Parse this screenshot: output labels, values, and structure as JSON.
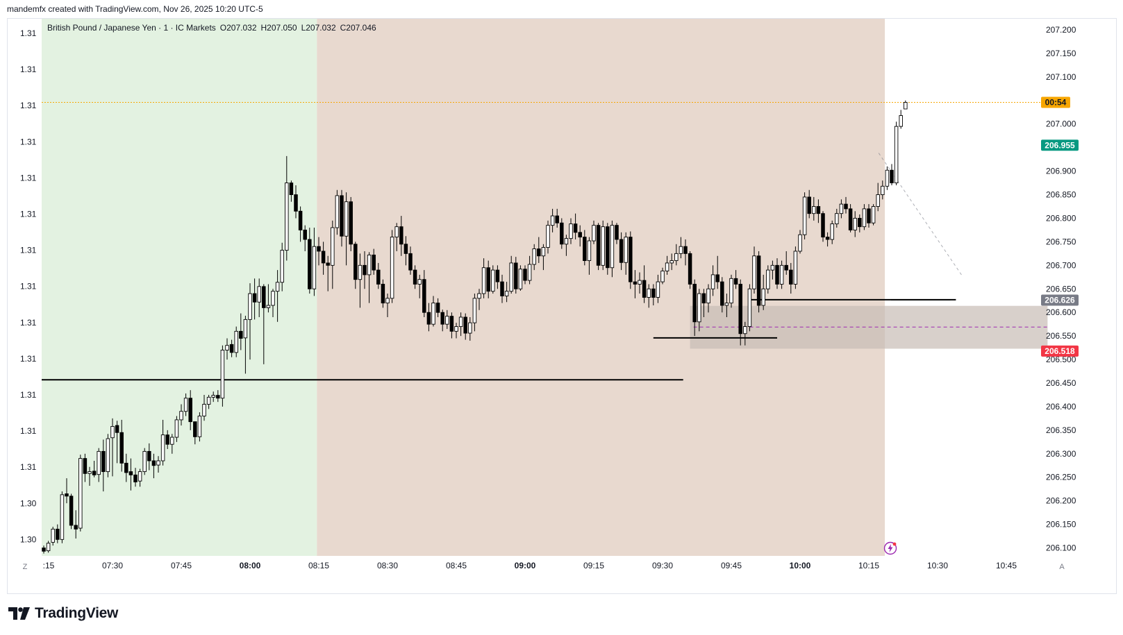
{
  "header": {
    "credit": "mandemfx created with TradingView.com, Nov 26, 2025 10:20 UTC-5"
  },
  "legend": {
    "symbol": "British Pound / Japanese Yen · 1 · IC Markets",
    "open": "O207.032",
    "high": "H207.050",
    "low": "L207.032",
    "close": "C207.046"
  },
  "brand": {
    "name": "TradingView",
    "icon": "tradingview-logo-icon"
  },
  "footer": {
    "z_label": "Z",
    "auto_label": "A"
  },
  "colors": {
    "bull_body": "#ffffff",
    "bear_body": "#000000",
    "bg_session_green": "#e3f2e1",
    "bg_session_brown": "#e8d9cf",
    "target_zone": "#8fc3a6",
    "stop_zone": "#eba9a7",
    "fvg_box": "#c7bcb5",
    "current_price_line": "#f7a600",
    "countdown_badge": "#f7a600",
    "target_badge": "#089981",
    "entry_badge": "#787b86",
    "stop_badge": "#f23645"
  },
  "chart_data": {
    "type": "candlestick",
    "symbol": "GBPJPY",
    "timeframe": "1",
    "x_tick_labels": [
      ":15",
      "07:30",
      "07:45",
      "08:00",
      "08:15",
      "08:30",
      "08:45",
      "09:00",
      "09:15",
      "09:30",
      "09:45",
      "10:00",
      "10:15",
      "10:30",
      "10:45"
    ],
    "x_tick_bold": [
      false,
      false,
      false,
      true,
      false,
      false,
      false,
      true,
      false,
      false,
      false,
      true,
      false,
      false,
      false
    ],
    "right_axis_labels": [
      "207.200",
      "207.150",
      "207.100",
      "207.000",
      "206.900",
      "206.850",
      "206.800",
      "206.750",
      "206.700",
      "206.650",
      "206.600",
      "206.550",
      "206.500",
      "206.450",
      "206.400",
      "206.350",
      "206.300",
      "206.250",
      "206.200",
      "206.150",
      "206.100"
    ],
    "left_axis_labels": [
      "1.31",
      "1.31",
      "1.31",
      "1.31",
      "1.31",
      "1.31",
      "1.31",
      "1.31",
      "1.31",
      "1.31",
      "1.31",
      "1.31",
      "1.31",
      "1.30",
      "1.30"
    ],
    "ylim": [
      206.085,
      207.225
    ],
    "price_badges": [
      {
        "text": "00:54",
        "price": 207.046,
        "kind": "countdown"
      },
      {
        "text": "206.955",
        "price": 206.955,
        "kind": "target"
      },
      {
        "text": "206.626",
        "price": 206.626,
        "kind": "entry"
      },
      {
        "text": "206.518",
        "price": 206.518,
        "kind": "stop"
      }
    ],
    "background_sessions": [
      {
        "start": 0,
        "end": 59.6,
        "color": "green"
      },
      {
        "start": 59.6,
        "end": 183.5,
        "color": "brown"
      }
    ],
    "horizontal_levels": [
      {
        "price": 206.457,
        "start": 0,
        "end": 139.5
      },
      {
        "price": 206.546,
        "start": 133,
        "end": 160
      },
      {
        "price": 206.627,
        "start": 154,
        "end": 199
      }
    ],
    "fvg_box": {
      "top": 206.614,
      "bottom": 206.523,
      "start": 141,
      "end": 219,
      "mid": 206.569
    },
    "position": {
      "entry": 206.626,
      "target": 206.955,
      "stop": 206.518,
      "start": 199,
      "end": 244.5
    },
    "candles": [
      [
        206.1,
        206.105,
        206.088,
        206.093
      ],
      [
        206.094,
        206.115,
        206.09,
        206.11
      ],
      [
        206.112,
        206.145,
        206.105,
        206.14
      ],
      [
        206.14,
        206.15,
        206.11,
        206.118
      ],
      [
        206.118,
        206.22,
        206.11,
        206.213
      ],
      [
        206.215,
        206.248,
        206.195,
        206.21
      ],
      [
        206.21,
        206.215,
        206.14,
        206.148
      ],
      [
        206.148,
        206.18,
        206.12,
        206.14
      ],
      [
        206.142,
        206.298,
        206.135,
        206.29
      ],
      [
        206.29,
        206.3,
        206.24,
        206.258
      ],
      [
        206.258,
        206.272,
        206.232,
        206.262
      ],
      [
        206.263,
        206.285,
        206.25,
        206.255
      ],
      [
        206.256,
        206.312,
        206.24,
        206.305
      ],
      [
        206.305,
        206.33,
        206.22,
        206.262
      ],
      [
        206.262,
        206.342,
        206.25,
        206.332
      ],
      [
        206.334,
        206.375,
        206.252,
        206.358
      ],
      [
        206.36,
        206.37,
        206.28,
        206.345
      ],
      [
        206.345,
        206.372,
        206.262,
        206.28
      ],
      [
        206.28,
        206.3,
        206.24,
        206.26
      ],
      [
        206.262,
        206.29,
        206.222,
        206.255
      ],
      [
        206.255,
        206.27,
        206.23,
        206.24
      ],
      [
        206.242,
        206.268,
        206.23,
        206.262
      ],
      [
        206.262,
        206.312,
        206.255,
        206.305
      ],
      [
        206.305,
        206.322,
        206.265,
        206.285
      ],
      [
        206.285,
        206.3,
        206.248,
        206.275
      ],
      [
        206.276,
        206.295,
        206.26,
        206.285
      ],
      [
        206.285,
        206.372,
        206.275,
        206.34
      ],
      [
        206.34,
        206.35,
        206.31,
        206.32
      ],
      [
        206.32,
        206.342,
        206.3,
        206.335
      ],
      [
        206.335,
        206.38,
        206.325,
        206.372
      ],
      [
        206.372,
        206.405,
        206.36,
        206.39
      ],
      [
        206.39,
        206.428,
        206.38,
        206.418
      ],
      [
        206.418,
        206.435,
        206.35,
        206.368
      ],
      [
        206.368,
        206.368,
        206.32,
        206.336
      ],
      [
        206.336,
        206.388,
        206.326,
        206.38
      ],
      [
        206.38,
        206.425,
        206.37,
        206.405
      ],
      [
        206.405,
        206.425,
        206.395,
        206.42
      ],
      [
        206.42,
        206.432,
        206.41,
        206.424
      ],
      [
        206.424,
        206.435,
        206.41,
        206.418
      ],
      [
        206.418,
        206.53,
        206.4,
        206.52
      ],
      [
        206.52,
        206.545,
        206.5,
        206.53
      ],
      [
        206.532,
        206.542,
        206.505,
        206.515
      ],
      [
        206.515,
        206.57,
        206.505,
        206.56
      ],
      [
        206.56,
        206.598,
        206.52,
        206.545
      ],
      [
        206.546,
        206.593,
        206.47,
        206.585
      ],
      [
        206.585,
        206.662,
        206.5,
        206.64
      ],
      [
        206.64,
        206.672,
        206.585,
        206.622
      ],
      [
        206.622,
        206.672,
        206.59,
        206.655
      ],
      [
        206.655,
        206.66,
        206.49,
        206.61
      ],
      [
        206.61,
        206.66,
        206.6,
        206.615
      ],
      [
        206.615,
        206.65,
        206.59,
        206.645
      ],
      [
        206.645,
        206.69,
        206.58,
        206.664
      ],
      [
        206.664,
        206.748,
        206.645,
        206.732
      ],
      [
        206.732,
        206.932,
        206.71,
        206.875
      ],
      [
        206.875,
        206.88,
        206.835,
        206.85
      ],
      [
        206.85,
        206.87,
        206.8,
        206.815
      ],
      [
        206.815,
        206.825,
        206.75,
        206.775
      ],
      [
        206.775,
        206.785,
        206.73,
        206.755
      ],
      [
        206.755,
        206.78,
        206.64,
        206.65
      ],
      [
        206.65,
        206.78,
        206.635,
        206.74
      ],
      [
        206.74,
        206.76,
        206.7,
        206.73
      ],
      [
        206.73,
        206.75,
        206.68,
        206.705
      ],
      [
        206.705,
        206.72,
        206.645,
        206.7
      ],
      [
        206.7,
        206.795,
        206.65,
        206.78
      ],
      [
        206.78,
        206.86,
        206.765,
        206.848
      ],
      [
        206.848,
        206.86,
        206.74,
        206.762
      ],
      [
        206.762,
        206.855,
        206.7,
        206.835
      ],
      [
        206.835,
        206.845,
        206.73,
        206.745
      ],
      [
        206.745,
        206.75,
        206.65,
        206.67
      ],
      [
        206.67,
        206.725,
        206.61,
        206.7
      ],
      [
        206.7,
        206.73,
        206.65,
        206.68
      ],
      [
        206.68,
        206.728,
        206.62,
        206.722
      ],
      [
        206.722,
        206.735,
        206.68,
        206.69
      ],
      [
        206.69,
        206.705,
        206.65,
        206.66
      ],
      [
        206.66,
        206.67,
        206.61,
        206.62
      ],
      [
        206.62,
        206.64,
        206.59,
        206.63
      ],
      [
        206.63,
        206.775,
        206.62,
        206.76
      ],
      [
        206.76,
        206.79,
        206.73,
        206.782
      ],
      [
        206.782,
        206.805,
        206.72,
        206.745
      ],
      [
        206.745,
        206.762,
        206.7,
        206.725
      ],
      [
        206.725,
        206.74,
        206.68,
        206.69
      ],
      [
        206.69,
        206.7,
        206.65,
        206.66
      ],
      [
        206.66,
        206.68,
        206.63,
        206.67
      ],
      [
        206.67,
        206.69,
        206.59,
        206.6
      ],
      [
        206.6,
        206.62,
        206.56,
        206.575
      ],
      [
        206.575,
        206.635,
        206.57,
        206.62
      ],
      [
        206.62,
        206.63,
        206.59,
        206.6
      ],
      [
        206.6,
        206.606,
        206.56,
        206.575
      ],
      [
        206.575,
        206.605,
        206.565,
        206.592
      ],
      [
        206.592,
        206.6,
        206.545,
        206.56
      ],
      [
        206.56,
        206.578,
        206.545,
        206.57
      ],
      [
        206.57,
        206.6,
        206.55,
        206.59
      ],
      [
        206.59,
        206.598,
        206.542,
        206.556
      ],
      [
        206.556,
        206.59,
        206.54,
        206.578
      ],
      [
        206.578,
        206.64,
        206.56,
        206.63
      ],
      [
        206.63,
        206.65,
        206.605,
        206.64
      ],
      [
        206.64,
        206.715,
        206.63,
        206.695
      ],
      [
        206.695,
        206.71,
        206.63,
        206.645
      ],
      [
        206.645,
        206.7,
        206.64,
        206.69
      ],
      [
        206.69,
        206.7,
        206.65,
        206.665
      ],
      [
        206.665,
        206.68,
        206.62,
        206.635
      ],
      [
        206.635,
        206.665,
        206.622,
        206.645
      ],
      [
        206.645,
        206.72,
        206.64,
        206.705
      ],
      [
        206.705,
        206.718,
        206.64,
        206.65
      ],
      [
        206.65,
        206.7,
        206.646,
        206.692
      ],
      [
        206.692,
        206.7,
        206.66,
        206.668
      ],
      [
        206.668,
        206.72,
        206.66,
        206.702
      ],
      [
        206.702,
        206.745,
        206.69,
        206.735
      ],
      [
        206.735,
        206.76,
        206.705,
        206.72
      ],
      [
        206.72,
        206.745,
        206.69,
        206.738
      ],
      [
        206.738,
        206.795,
        206.725,
        206.785
      ],
      [
        206.785,
        206.82,
        206.77,
        206.805
      ],
      [
        206.805,
        206.82,
        206.78,
        206.79
      ],
      [
        206.79,
        206.8,
        206.735,
        206.745
      ],
      [
        206.745,
        206.765,
        206.72,
        206.757
      ],
      [
        206.757,
        206.8,
        206.745,
        206.788
      ],
      [
        206.788,
        206.81,
        206.755,
        206.77
      ],
      [
        206.77,
        206.785,
        206.74,
        206.76
      ],
      [
        206.76,
        206.775,
        206.7,
        206.71
      ],
      [
        206.71,
        206.76,
        206.68,
        206.752
      ],
      [
        206.752,
        206.795,
        206.745,
        206.785
      ],
      [
        206.785,
        206.79,
        206.69,
        206.7
      ],
      [
        206.7,
        206.795,
        206.69,
        206.782
      ],
      [
        206.782,
        206.79,
        206.68,
        206.695
      ],
      [
        206.695,
        206.795,
        206.675,
        206.785
      ],
      [
        206.785,
        206.79,
        206.745,
        206.755
      ],
      [
        206.755,
        206.77,
        206.69,
        206.706
      ],
      [
        206.706,
        206.77,
        206.68,
        206.76
      ],
      [
        206.76,
        206.772,
        206.65,
        206.665
      ],
      [
        206.665,
        206.69,
        206.63,
        206.66
      ],
      [
        206.66,
        206.685,
        206.64,
        206.668
      ],
      [
        206.668,
        206.7,
        206.62,
        206.632
      ],
      [
        206.632,
        206.66,
        206.61,
        206.65
      ],
      [
        206.65,
        206.66,
        206.615,
        206.632
      ],
      [
        206.632,
        206.68,
        206.62,
        206.665
      ],
      [
        206.665,
        206.695,
        206.66,
        206.688
      ],
      [
        206.688,
        206.72,
        206.68,
        206.705
      ],
      [
        206.705,
        206.725,
        206.69,
        206.71
      ],
      [
        206.71,
        206.745,
        206.7,
        206.725
      ],
      [
        206.725,
        206.76,
        206.715,
        206.74
      ],
      [
        206.74,
        206.755,
        206.7,
        206.725
      ],
      [
        206.725,
        206.73,
        206.65,
        206.66
      ],
      [
        206.66,
        206.67,
        206.55,
        206.58
      ],
      [
        206.58,
        206.65,
        206.56,
        206.64
      ],
      [
        206.64,
        206.65,
        206.59,
        206.62
      ],
      [
        206.62,
        206.66,
        206.6,
        206.65
      ],
      [
        206.65,
        206.7,
        206.635,
        206.68
      ],
      [
        206.68,
        206.72,
        206.65,
        206.665
      ],
      [
        206.665,
        206.675,
        206.6,
        206.615
      ],
      [
        206.615,
        206.64,
        206.59,
        206.62
      ],
      [
        206.62,
        206.68,
        206.61,
        206.672
      ],
      [
        206.672,
        206.69,
        206.65,
        206.66
      ],
      [
        206.66,
        206.67,
        206.53,
        206.555
      ],
      [
        206.555,
        206.58,
        206.53,
        206.57
      ],
      [
        206.57,
        206.66,
        206.56,
        206.65
      ],
      [
        206.65,
        206.74,
        206.64,
        206.72
      ],
      [
        206.72,
        206.73,
        206.6,
        206.615
      ],
      [
        206.615,
        206.68,
        206.605,
        206.65
      ],
      [
        206.65,
        206.7,
        206.64,
        206.69
      ],
      [
        206.69,
        206.71,
        206.67,
        206.7
      ],
      [
        206.7,
        206.715,
        206.65,
        206.66
      ],
      [
        206.66,
        206.71,
        206.65,
        206.7
      ],
      [
        206.7,
        206.73,
        206.68,
        206.69
      ],
      [
        206.69,
        206.705,
        206.64,
        206.66
      ],
      [
        206.66,
        206.74,
        206.65,
        206.73
      ],
      [
        206.73,
        206.775,
        206.725,
        206.765
      ],
      [
        206.765,
        206.855,
        206.755,
        206.845
      ],
      [
        206.845,
        206.86,
        206.8,
        206.81
      ],
      [
        206.81,
        206.845,
        206.795,
        206.825
      ],
      [
        206.825,
        206.84,
        206.79,
        206.81
      ],
      [
        206.81,
        206.815,
        206.75,
        206.76
      ],
      [
        206.76,
        206.77,
        206.74,
        206.755
      ],
      [
        206.755,
        206.795,
        206.745,
        206.788
      ],
      [
        206.788,
        206.82,
        206.78,
        206.81
      ],
      [
        206.81,
        206.84,
        206.8,
        206.83
      ],
      [
        206.83,
        206.845,
        206.81,
        206.82
      ],
      [
        206.82,
        206.83,
        206.77,
        206.775
      ],
      [
        206.775,
        206.815,
        206.76,
        206.8
      ],
      [
        206.8,
        206.808,
        206.77,
        206.782
      ],
      [
        206.782,
        206.83,
        206.775,
        206.82
      ],
      [
        206.82,
        206.83,
        206.78,
        206.79
      ],
      [
        206.79,
        206.83,
        206.785,
        206.825
      ],
      [
        206.825,
        206.875,
        206.815,
        206.85
      ],
      [
        206.85,
        206.88,
        206.84,
        206.868
      ],
      [
        206.868,
        206.91,
        206.86,
        206.902
      ],
      [
        206.902,
        206.915,
        206.87,
        206.875
      ],
      [
        206.875,
        207.005,
        206.87,
        206.995
      ],
      [
        206.995,
        207.03,
        206.99,
        207.018
      ],
      [
        207.032,
        207.05,
        207.032,
        207.046
      ]
    ]
  }
}
